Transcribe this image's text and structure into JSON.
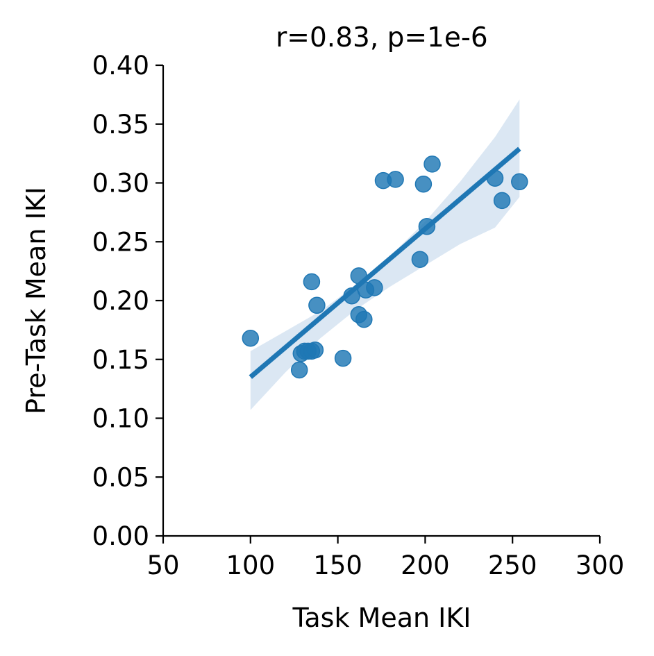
{
  "chart_data": {
    "type": "scatter",
    "title": "r=0.83, p=1e-6",
    "xlabel": "Task Mean IKI",
    "ylabel": "Pre-Task Mean IKI",
    "xlim": [
      50,
      300
    ],
    "ylim": [
      0.0,
      0.4
    ],
    "x_ticks": [
      "50",
      "100",
      "150",
      "200",
      "250",
      "300"
    ],
    "y_ticks": [
      "0.00",
      "0.05",
      "0.10",
      "0.15",
      "0.20",
      "0.25",
      "0.30",
      "0.35",
      "0.40"
    ],
    "grid": false,
    "colors": {
      "points": "#1f77b4",
      "line": "#1f77b4",
      "band": "#dbe7f3",
      "axis": "#000000"
    },
    "points": [
      {
        "x": 100,
        "y": 0.168
      },
      {
        "x": 128,
        "y": 0.141
      },
      {
        "x": 129,
        "y": 0.155
      },
      {
        "x": 131,
        "y": 0.157
      },
      {
        "x": 133,
        "y": 0.157
      },
      {
        "x": 135,
        "y": 0.157
      },
      {
        "x": 137,
        "y": 0.158
      },
      {
        "x": 135,
        "y": 0.216
      },
      {
        "x": 138,
        "y": 0.196
      },
      {
        "x": 153,
        "y": 0.151
      },
      {
        "x": 158,
        "y": 0.204
      },
      {
        "x": 162,
        "y": 0.221
      },
      {
        "x": 162,
        "y": 0.188
      },
      {
        "x": 165,
        "y": 0.184
      },
      {
        "x": 166,
        "y": 0.209
      },
      {
        "x": 171,
        "y": 0.211
      },
      {
        "x": 176,
        "y": 0.302
      },
      {
        "x": 183,
        "y": 0.303
      },
      {
        "x": 197,
        "y": 0.235
      },
      {
        "x": 199,
        "y": 0.299
      },
      {
        "x": 201,
        "y": 0.263
      },
      {
        "x": 204,
        "y": 0.316
      },
      {
        "x": 240,
        "y": 0.304
      },
      {
        "x": 244,
        "y": 0.285
      },
      {
        "x": 254,
        "y": 0.301
      }
    ],
    "regression": {
      "x_range": [
        100,
        254
      ],
      "y_at_start": 0.135,
      "y_at_end": 0.329
    },
    "confidence_band": [
      {
        "x": 100,
        "upper": 0.157,
        "lower": 0.107
      },
      {
        "x": 120,
        "upper": 0.174,
        "lower": 0.139
      },
      {
        "x": 140,
        "upper": 0.191,
        "lower": 0.168
      },
      {
        "x": 160,
        "upper": 0.213,
        "lower": 0.192
      },
      {
        "x": 180,
        "upper": 0.238,
        "lower": 0.212
      },
      {
        "x": 200,
        "upper": 0.267,
        "lower": 0.23
      },
      {
        "x": 220,
        "upper": 0.301,
        "lower": 0.248
      },
      {
        "x": 240,
        "upper": 0.339,
        "lower": 0.262
      },
      {
        "x": 254,
        "upper": 0.371,
        "lower": 0.288
      }
    ]
  }
}
